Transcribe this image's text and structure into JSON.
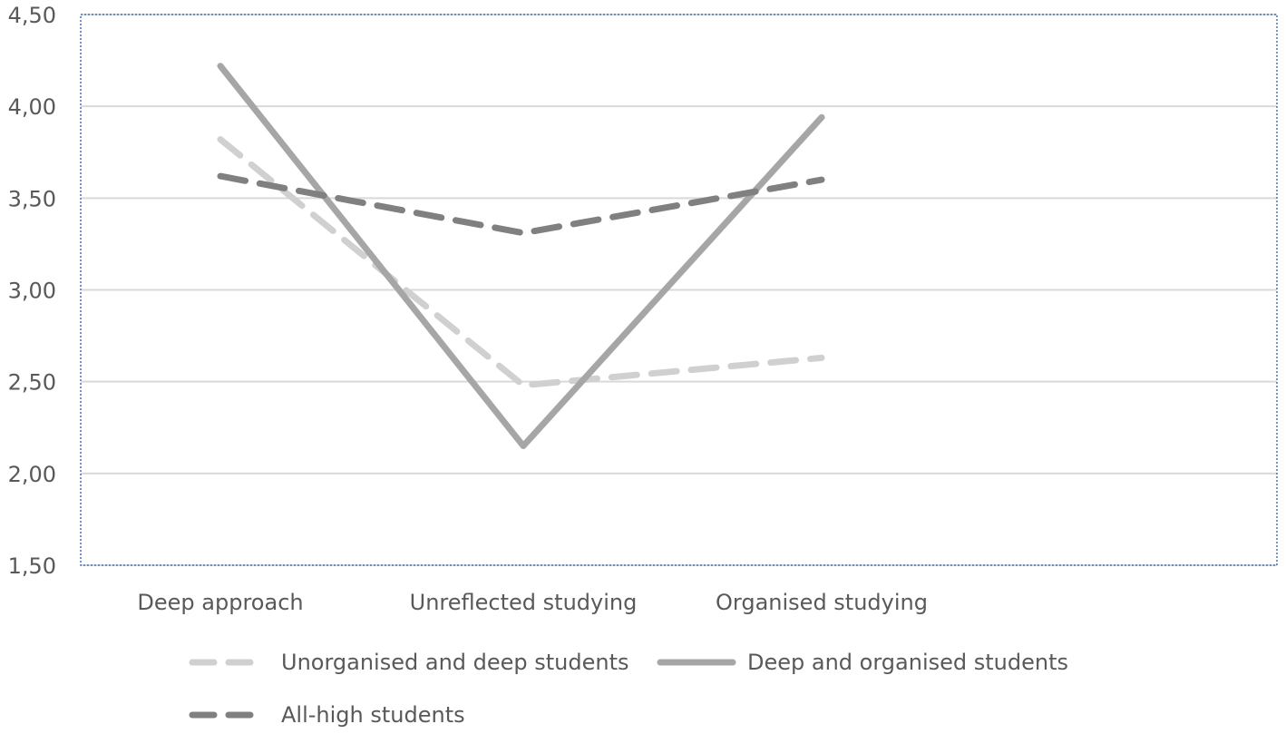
{
  "chart_data": {
    "type": "line",
    "categories": [
      "Deep approach",
      "Unreflected studying",
      "Organised studying"
    ],
    "series": [
      {
        "name": "Unorganised and deep students",
        "values": [
          3.82,
          2.48,
          2.63
        ],
        "color": "#d0d0d0",
        "dash": "dashed"
      },
      {
        "name": "Deep and organised students",
        "values": [
          4.22,
          2.15,
          3.94
        ],
        "color": "#a6a6a6",
        "dash": "solid"
      },
      {
        "name": "All-high students",
        "values": [
          3.62,
          3.31,
          3.6
        ],
        "color": "#808080",
        "dash": "dashed"
      }
    ],
    "ylim": [
      1.5,
      4.5
    ],
    "yticks": [
      1.5,
      2.0,
      2.5,
      3.0,
      3.5,
      4.0,
      4.5
    ],
    "ytick_labels": [
      "1,50",
      "2,00",
      "2,50",
      "3,00",
      "3,50",
      "4,00",
      "4,50"
    ],
    "xlabel": "",
    "ylabel": "",
    "grid": true,
    "legend_position": "bottom",
    "colors": {
      "grid": "#d9d9d9",
      "plot_border": "#4472c4",
      "text": "#595959"
    }
  }
}
